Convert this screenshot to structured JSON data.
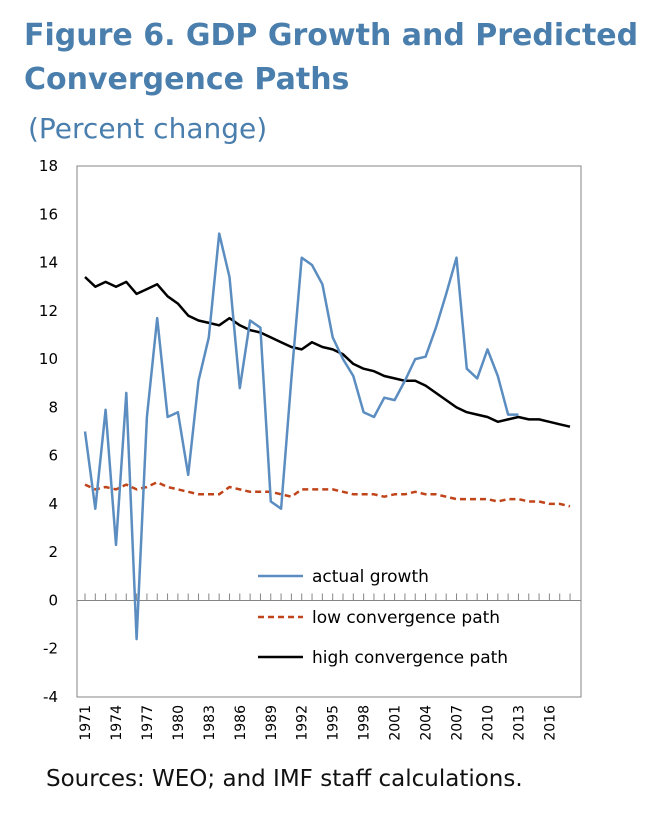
{
  "title": "Figure 6. GDP Growth and Predicted Convergence Paths",
  "subtitle": "(Percent change)",
  "source": "Sources: WEO; and IMF staff calculations.",
  "colors": {
    "actual": "#5b8dc0",
    "low": "#c0441a",
    "high": "#000000"
  },
  "chart_data": {
    "type": "line",
    "x": [
      1971,
      1972,
      1973,
      1974,
      1975,
      1976,
      1977,
      1978,
      1979,
      1980,
      1981,
      1982,
      1983,
      1984,
      1985,
      1986,
      1987,
      1988,
      1989,
      1990,
      1991,
      1992,
      1993,
      1994,
      1995,
      1996,
      1997,
      1998,
      1999,
      2000,
      2001,
      2002,
      2003,
      2004,
      2005,
      2006,
      2007,
      2008,
      2009,
      2010,
      2011,
      2012,
      2013,
      2014,
      2015,
      2016,
      2017,
      2018
    ],
    "xticks": [
      "1971",
      "1974",
      "1977",
      "1980",
      "1983",
      "1986",
      "1989",
      "1992",
      "1995",
      "1998",
      "2001",
      "2004",
      "2007",
      "2010",
      "2013",
      "2016"
    ],
    "ylim": [
      -4,
      18
    ],
    "yticks": [
      -4,
      -2,
      0,
      2,
      4,
      6,
      8,
      10,
      12,
      14,
      16,
      18
    ],
    "series": [
      {
        "name": "actual growth",
        "style": "solid",
        "values": [
          7.0,
          3.8,
          7.9,
          2.3,
          8.6,
          -1.6,
          7.6,
          11.7,
          7.6,
          7.8,
          5.2,
          9.1,
          10.9,
          15.2,
          13.4,
          8.8,
          11.6,
          11.3,
          4.1,
          3.8,
          9.2,
          14.2,
          13.9,
          13.1,
          10.9,
          10.0,
          9.3,
          7.8,
          7.6,
          8.4,
          8.3,
          9.1,
          10.0,
          10.1,
          11.3,
          12.7,
          14.2,
          9.6,
          9.2,
          10.4,
          9.3,
          7.7,
          7.7,
          null,
          null,
          null,
          null,
          null
        ]
      },
      {
        "name": "low convergence path",
        "style": "dashed",
        "values": [
          4.8,
          4.6,
          4.7,
          4.6,
          4.8,
          4.6,
          4.7,
          4.9,
          4.7,
          4.6,
          4.5,
          4.4,
          4.4,
          4.4,
          4.7,
          4.6,
          4.5,
          4.5,
          4.5,
          4.4,
          4.3,
          4.6,
          4.6,
          4.6,
          4.6,
          4.5,
          4.4,
          4.4,
          4.4,
          4.3,
          4.4,
          4.4,
          4.5,
          4.4,
          4.4,
          4.3,
          4.2,
          4.2,
          4.2,
          4.2,
          4.1,
          4.2,
          4.2,
          4.1,
          4.1,
          4.0,
          4.0,
          3.9
        ]
      },
      {
        "name": "high convergence path",
        "style": "solid",
        "values": [
          13.4,
          13.0,
          13.2,
          13.0,
          13.2,
          12.7,
          12.9,
          13.1,
          12.6,
          12.3,
          11.8,
          11.6,
          11.5,
          11.4,
          11.7,
          11.4,
          11.2,
          11.1,
          10.9,
          10.7,
          10.5,
          10.4,
          10.7,
          10.5,
          10.4,
          10.2,
          9.8,
          9.6,
          9.5,
          9.3,
          9.2,
          9.1,
          9.1,
          8.9,
          8.6,
          8.3,
          8.0,
          7.8,
          7.7,
          7.6,
          7.4,
          7.5,
          7.6,
          7.5,
          7.5,
          7.4,
          7.3,
          7.2
        ]
      }
    ],
    "legend_position": "bottom-inside",
    "grid": false
  }
}
